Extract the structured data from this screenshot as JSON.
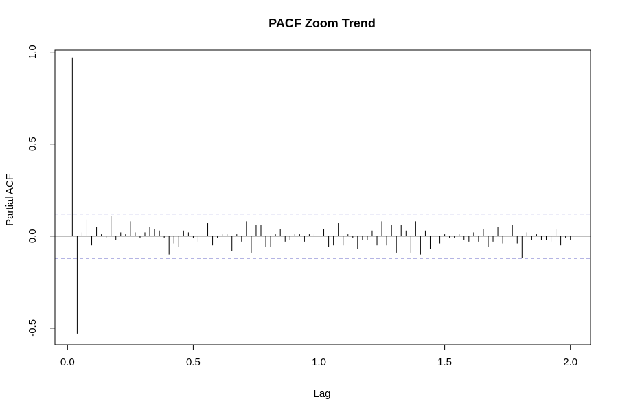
{
  "chart_data": {
    "type": "bar",
    "title": "PACF Zoom Trend",
    "xlabel": "Lag",
    "ylabel": "Partial ACF",
    "xlim": [
      -0.05,
      2.08
    ],
    "ylim": [
      -0.59,
      1.01
    ],
    "xticks": [
      "0.0",
      "0.5",
      "1.0",
      "1.5",
      "2.0"
    ],
    "xtick_values": [
      0.0,
      0.5,
      1.0,
      1.5,
      2.0
    ],
    "yticks": [
      "-0.5",
      "0.0",
      "0.5",
      "1.0"
    ],
    "ytick_values": [
      -0.5,
      0.0,
      0.5,
      1.0
    ],
    "confidence_bound": 0.12,
    "confidence_color": "#6a6ac8",
    "grid": false,
    "series": [
      {
        "x": [
          0.0192,
          0.0385,
          0.0577,
          0.0769,
          0.0962,
          0.1154,
          0.1346,
          0.1538,
          0.1731,
          0.1923,
          0.2115,
          0.2308,
          0.25,
          0.2692,
          0.2885,
          0.3077,
          0.3269,
          0.3462,
          0.3654,
          0.3846,
          0.4038,
          0.4231,
          0.4423,
          0.4615,
          0.4808,
          0.5,
          0.5192,
          0.5385,
          0.5577,
          0.5769,
          0.5962,
          0.6154,
          0.6346,
          0.6538,
          0.6731,
          0.6923,
          0.7115,
          0.7308,
          0.75,
          0.7692,
          0.7885,
          0.8077,
          0.8269,
          0.8462,
          0.8654,
          0.8846,
          0.9038,
          0.9231,
          0.9423,
          0.9615,
          0.9808,
          1.0,
          1.0192,
          1.0385,
          1.0577,
          1.0769,
          1.0962,
          1.1154,
          1.1346,
          1.1538,
          1.1731,
          1.1923,
          1.2115,
          1.2308,
          1.25,
          1.2692,
          1.2885,
          1.3077,
          1.3269,
          1.3462,
          1.3654,
          1.3846,
          1.4038,
          1.4231,
          1.4423,
          1.4615,
          1.4808,
          1.5,
          1.5192,
          1.5385,
          1.5577,
          1.5769,
          1.5962,
          1.6154,
          1.6346,
          1.6538,
          1.6731,
          1.6923,
          1.7115,
          1.7308,
          1.75,
          1.7692,
          1.7885,
          1.8077,
          1.8269,
          1.8462,
          1.8654,
          1.8846,
          1.9038,
          1.9231,
          1.9423,
          1.9615,
          1.9808,
          2.0
        ],
        "values": [
          0.97,
          -0.53,
          0.02,
          0.09,
          -0.05,
          0.05,
          0.01,
          -0.01,
          0.11,
          -0.02,
          0.02,
          0.01,
          0.08,
          0.02,
          -0.01,
          0.02,
          0.05,
          0.04,
          0.03,
          -0.01,
          -0.1,
          -0.04,
          -0.06,
          0.03,
          0.02,
          -0.01,
          -0.03,
          -0.01,
          0.07,
          -0.05,
          -0.01,
          0.01,
          0.01,
          -0.08,
          0.01,
          -0.03,
          0.08,
          -0.09,
          0.06,
          0.06,
          -0.06,
          -0.06,
          0.01,
          0.04,
          -0.03,
          -0.02,
          0.01,
          0.01,
          -0.03,
          0.01,
          0.01,
          -0.04,
          0.04,
          -0.06,
          -0.05,
          0.07,
          -0.05,
          0.01,
          -0.01,
          -0.07,
          -0.02,
          -0.02,
          0.03,
          -0.05,
          0.08,
          -0.05,
          0.06,
          -0.09,
          0.06,
          0.03,
          -0.09,
          0.08,
          -0.1,
          0.03,
          -0.07,
          0.04,
          -0.04,
          0.01,
          -0.01,
          -0.01,
          0.01,
          -0.02,
          -0.03,
          0.02,
          -0.03,
          0.04,
          -0.06,
          -0.03,
          0.05,
          -0.04,
          0.0,
          0.06,
          -0.04,
          -0.12,
          0.02,
          -0.02,
          0.01,
          -0.02,
          -0.02,
          -0.03,
          0.04,
          -0.05,
          -0.01,
          -0.02
        ]
      }
    ]
  }
}
